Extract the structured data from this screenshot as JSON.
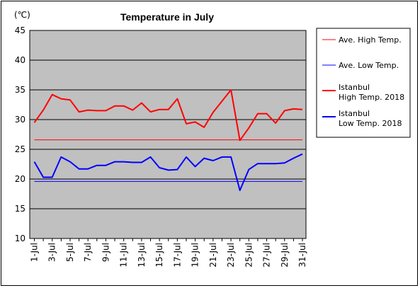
{
  "chart_data": {
    "type": "line",
    "title": "Temperature in July",
    "unit_label": "(℃)",
    "ylim": [
      10,
      45
    ],
    "yticks": [
      10,
      15,
      20,
      25,
      30,
      35,
      40,
      45
    ],
    "grid": true,
    "legend_position": "right",
    "x": [
      "1-Jul",
      "2-Jul",
      "3-Jul",
      "4-Jul",
      "5-Jul",
      "6-Jul",
      "7-Jul",
      "8-Jul",
      "9-Jul",
      "10-Jul",
      "11-Jul",
      "12-Jul",
      "13-Jul",
      "14-Jul",
      "15-Jul",
      "16-Jul",
      "17-Jul",
      "18-Jul",
      "19-Jul",
      "20-Jul",
      "21-Jul",
      "22-Jul",
      "23-Jul",
      "24-Jul",
      "25-Jul",
      "26-Jul",
      "27-Jul",
      "28-Jul",
      "29-Jul",
      "30-Jul",
      "31-Jul"
    ],
    "xtick_labels": [
      "1-Jul",
      "3-Jul",
      "5-Jul",
      "7-Jul",
      "9-Jul",
      "11-Jul",
      "13-Jul",
      "15-Jul",
      "17-Jul",
      "19-Jul",
      "21-Jul",
      "23-Jul",
      "25-Jul",
      "27-Jul",
      "29-Jul",
      "31-Jul"
    ],
    "series": [
      {
        "name": "Ave. High Temp.",
        "color": "#ff0000",
        "width": 1,
        "values": [
          26.6,
          26.6,
          26.6,
          26.6,
          26.6,
          26.6,
          26.6,
          26.6,
          26.6,
          26.6,
          26.6,
          26.6,
          26.6,
          26.6,
          26.6,
          26.6,
          26.6,
          26.6,
          26.6,
          26.6,
          26.6,
          26.6,
          26.6,
          26.6,
          26.6,
          26.6,
          26.6,
          26.6,
          26.6,
          26.6,
          26.6
        ]
      },
      {
        "name": "Ave. Low Temp.",
        "color": "#0000ff",
        "width": 1,
        "values": [
          19.6,
          19.6,
          19.6,
          19.6,
          19.6,
          19.6,
          19.6,
          19.6,
          19.6,
          19.6,
          19.6,
          19.6,
          19.6,
          19.6,
          19.6,
          19.6,
          19.6,
          19.6,
          19.6,
          19.6,
          19.6,
          19.6,
          19.6,
          19.6,
          19.6,
          19.6,
          19.6,
          19.6,
          19.6,
          19.6,
          19.6
        ]
      },
      {
        "name": "Istanbul\nHigh Temp. 2018",
        "color": "#ff0000",
        "width": 2,
        "values": [
          29.5,
          31.6,
          34.2,
          33.5,
          33.3,
          31.3,
          31.6,
          31.5,
          31.5,
          32.3,
          32.3,
          31.6,
          32.8,
          31.3,
          31.7,
          31.7,
          33.5,
          29.3,
          29.6,
          28.7,
          31.2,
          33.1,
          35.0,
          26.5,
          28.6,
          31.0,
          31.0,
          29.4,
          31.5,
          31.8,
          31.7
        ]
      },
      {
        "name": "Istanbul\nLow Temp. 2018",
        "color": "#0000ff",
        "width": 2,
        "values": [
          22.9,
          20.3,
          20.3,
          23.7,
          22.9,
          21.7,
          21.7,
          22.3,
          22.3,
          22.9,
          22.9,
          22.8,
          22.8,
          23.7,
          21.9,
          21.5,
          21.6,
          23.7,
          22.1,
          23.5,
          23.1,
          23.7,
          23.7,
          18.1,
          21.6,
          22.6,
          22.6,
          22.6,
          22.7,
          23.5,
          24.2
        ]
      }
    ]
  }
}
